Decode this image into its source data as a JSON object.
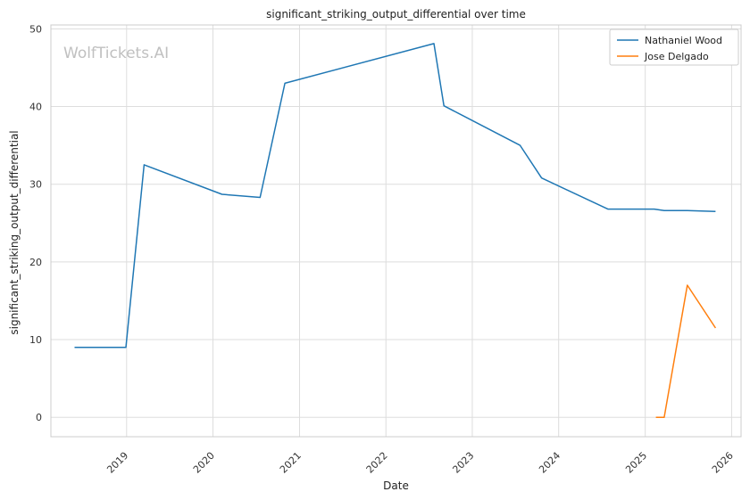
{
  "watermark": "WolfTickets.AI",
  "chart_data": {
    "type": "line",
    "title": "significant_striking_output_differential over time",
    "xlabel": "Date",
    "ylabel": "significant_striking_output_differential",
    "x_ticks": [
      "2019",
      "2020",
      "2021",
      "2022",
      "2023",
      "2024",
      "2025",
      "2026"
    ],
    "y_ticks": [
      0,
      10,
      20,
      30,
      40,
      50
    ],
    "xlim": [
      "2018-02-15",
      "2026-02-10"
    ],
    "ylim": [
      -2.5,
      50.5
    ],
    "grid": true,
    "legend_position": "top-right",
    "series": [
      {
        "name": "Nathaniel Wood",
        "color": "#1f77b4",
        "points": [
          {
            "date": "2018-05-26",
            "value": 9.0
          },
          {
            "date": "2018-12-29",
            "value": 9.0
          },
          {
            "date": "2019-03-16",
            "value": 32.5
          },
          {
            "date": "2020-02-08",
            "value": 28.7
          },
          {
            "date": "2020-07-18",
            "value": 28.3
          },
          {
            "date": "2020-10-31",
            "value": 43.0
          },
          {
            "date": "2022-07-23",
            "value": 48.1
          },
          {
            "date": "2022-09-03",
            "value": 40.1
          },
          {
            "date": "2023-07-22",
            "value": 35.0
          },
          {
            "date": "2023-10-21",
            "value": 30.8
          },
          {
            "date": "2024-07-27",
            "value": 26.8
          },
          {
            "date": "2025-02-08",
            "value": 26.8
          },
          {
            "date": "2025-03-22",
            "value": 26.6
          },
          {
            "date": "2025-06-28",
            "value": 26.6
          },
          {
            "date": "2025-10-25",
            "value": 26.5
          }
        ]
      },
      {
        "name": "Jose Delgado",
        "color": "#ff7f0e",
        "points": [
          {
            "date": "2025-02-15",
            "value": 0.0
          },
          {
            "date": "2025-03-22",
            "value": 0.0
          },
          {
            "date": "2025-06-28",
            "value": 17.0
          },
          {
            "date": "2025-10-25",
            "value": 11.5
          }
        ]
      }
    ]
  }
}
